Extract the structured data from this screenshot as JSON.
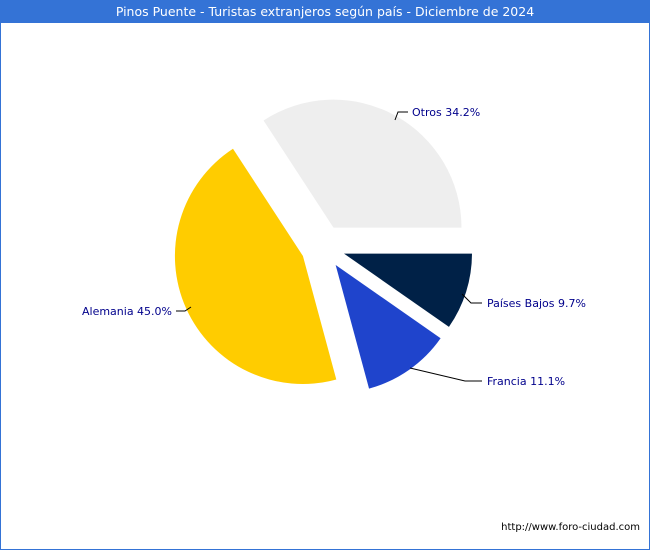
{
  "chart_data": {
    "type": "pie",
    "title": "Pinos Puente - Turistas extranjeros según país - Diciembre de 2024",
    "slices": [
      {
        "label": "Otros",
        "value": 34.2,
        "text": "Otros 34.2%",
        "color": "#eeeeee"
      },
      {
        "label": "Alemania",
        "value": 45.0,
        "text": "Alemania 45.0%",
        "color": "#ffcc00"
      },
      {
        "label": "Francia",
        "value": 11.1,
        "text": "Francia 11.1%",
        "color": "#1f44cc"
      },
      {
        "label": "Países Bajos",
        "value": 9.7,
        "text": "Países Bajos 9.7%",
        "color": "#002147"
      }
    ],
    "exploded": true
  },
  "footer": {
    "url": "http://www.foro-ciudad.com"
  }
}
